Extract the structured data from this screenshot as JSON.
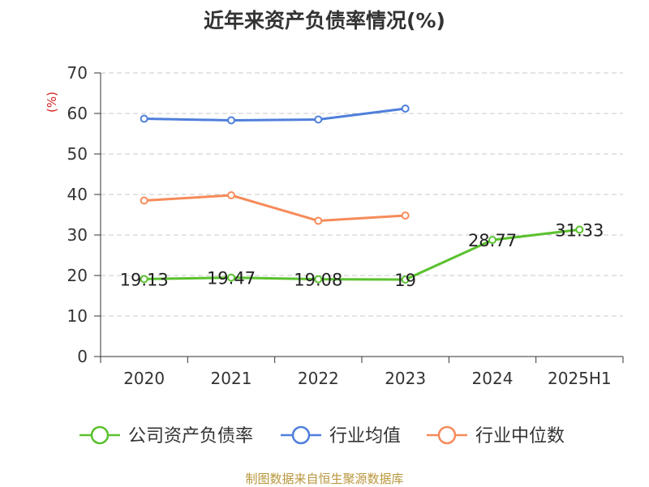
{
  "chart_data": {
    "type": "line",
    "title": "近年来资产负债率情况(%)",
    "ylabel": "(%)",
    "categories": [
      "2020",
      "2021",
      "2022",
      "2023",
      "2024",
      "2025H1"
    ],
    "yticks": [
      "0",
      "10",
      "20",
      "30",
      "40",
      "50",
      "60",
      "70"
    ],
    "ylim": [
      0,
      70
    ],
    "grid": "horizontal dashed",
    "legend_position": "bottom",
    "series": [
      {
        "name": "公司资产负债率",
        "color": "#5ac12e",
        "values": [
          19.13,
          19.47,
          19.08,
          19,
          28.77,
          31.33
        ],
        "labels": [
          "19.13",
          "19.47",
          "19.08",
          "19",
          "28.77",
          "31.33"
        ]
      },
      {
        "name": "行业均值",
        "color": "#4f7fdc",
        "values": [
          58.7,
          58.3,
          58.5,
          61.2,
          null,
          null
        ],
        "labels": []
      },
      {
        "name": "行业中位数",
        "color": "#f58b5a",
        "values": [
          38.5,
          39.8,
          33.5,
          34.8,
          null,
          null
        ],
        "labels": []
      }
    ]
  },
  "source": "制图数据来自恒生聚源数据库"
}
